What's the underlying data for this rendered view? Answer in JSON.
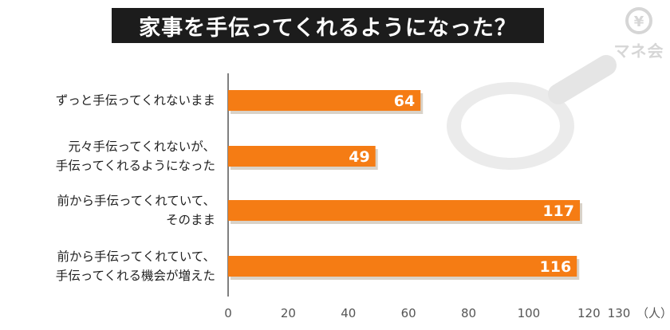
{
  "title": "家事を手伝ってくれるようになった？",
  "logo": {
    "text": "マネ会",
    "symbol": "¥"
  },
  "chart_data": {
    "type": "bar",
    "orientation": "horizontal",
    "title": "家事を手伝ってくれるようになった？",
    "categories": [
      "ずっと手伝ってくれないまま",
      "元々手伝ってくれないが、\n手伝ってくれるようになった",
      "前から手伝ってくれていて、\nそのまま",
      "前から手伝ってくれていて、\n手伝ってくれる機会が増えた"
    ],
    "values": [
      64,
      49,
      117,
      116
    ],
    "xlim": [
      0,
      130
    ],
    "xticks": [
      "0",
      "20",
      "40",
      "60",
      "80",
      "100",
      "120",
      "130"
    ],
    "unit": "（人）",
    "grid": false,
    "colors": {
      "bar": "#f57c14",
      "bar_shadow": "#d9d2c8",
      "label": "#ffffff"
    }
  }
}
